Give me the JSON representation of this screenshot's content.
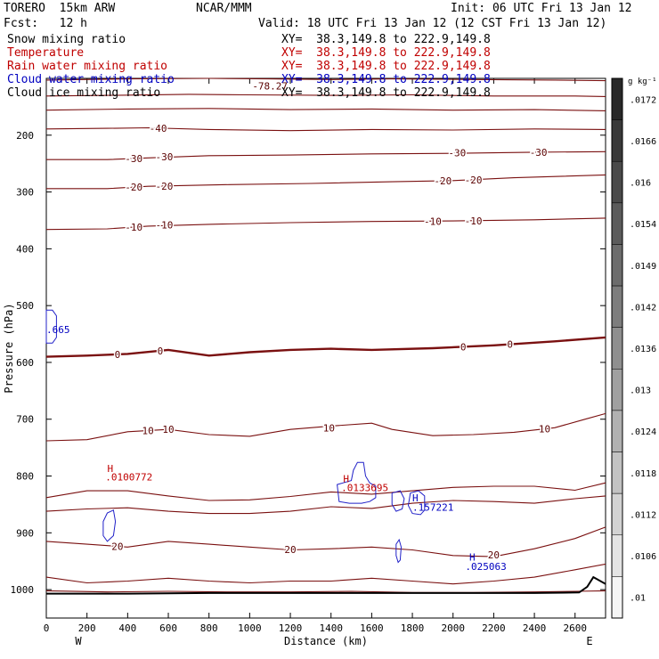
{
  "header": {
    "model": "TORERO  15km ARW",
    "org": "NCAR/MMM",
    "init": "Init: 06 UTC Fri 13 Jan 12",
    "fcst": "Fcst:   12 h",
    "valid": "Valid: 18 UTC Fri 13 Jan 12 (12 CST Fri 13 Jan 12)"
  },
  "fields": [
    {
      "name": "Snow mixing ratio",
      "xy": "XY=  38.3,149.8 to 222.9,149.8",
      "color": "#000000"
    },
    {
      "name": "Temperature",
      "xy": "XY=  38.3,149.8 to 222.9,149.8",
      "color": "#c00000"
    },
    {
      "name": "Rain water mixing ratio",
      "xy": "XY=  38.3,149.8 to 222.9,149.8",
      "color": "#c00000"
    },
    {
      "name": "Cloud water mixing ratio",
      "xy": "XY=  38.3,149.8 to 222.9,149.8",
      "color": "#0000c0"
    },
    {
      "name": "Cloud ice mixing ratio",
      "xy": "XY=  38.3,149.8 to 222.9,149.8",
      "color": "#000000"
    }
  ],
  "chart_data": {
    "type": "contour-cross-section",
    "xlabel": "Distance (km)",
    "ylabel": "Pressure (hPa)",
    "x_range": [
      0,
      2750
    ],
    "y_range": [
      100,
      1050
    ],
    "x_ticks": [
      0,
      200,
      400,
      600,
      800,
      1000,
      1200,
      1400,
      1600,
      1800,
      2000,
      2200,
      2400,
      2600
    ],
    "y_ticks": [
      200,
      300,
      400,
      500,
      600,
      700,
      800,
      900,
      1000
    ],
    "x_end_labels": [
      "W",
      "E"
    ],
    "colorbar": {
      "unit": "g kg⁻¹",
      "labels": [
        ".0172",
        ".0166",
        ".016",
        ".0154",
        ".0149",
        ".0142",
        ".0136",
        ".013",
        ".0124",
        ".0118",
        ".0112",
        ".0106",
        ".01"
      ]
    },
    "temperature_contours": [
      {
        "label": "-78.27",
        "points": [
          [
            0,
            103
          ],
          [
            400,
            101
          ],
          [
            800,
            100
          ],
          [
            1100,
            101
          ],
          [
            1400,
            102
          ],
          [
            1700,
            101
          ],
          [
            2100,
            102
          ],
          [
            2500,
            103
          ],
          [
            2750,
            104
          ]
        ]
      },
      {
        "label": "",
        "points": [
          [
            0,
            131
          ],
          [
            300,
            130
          ],
          [
            700,
            128
          ],
          [
            1000,
            129
          ],
          [
            1400,
            130
          ],
          [
            1800,
            129
          ],
          [
            2200,
            131
          ],
          [
            2600,
            131
          ],
          [
            2750,
            132
          ]
        ]
      },
      {
        "label": "",
        "points": [
          [
            0,
            156
          ],
          [
            400,
            154
          ],
          [
            800,
            153
          ],
          [
            1200,
            155
          ],
          [
            1600,
            154
          ],
          [
            2000,
            156
          ],
          [
            2400,
            155
          ],
          [
            2750,
            157
          ]
        ]
      },
      {
        "label": "-40",
        "points": [
          [
            0,
            189
          ],
          [
            300,
            188
          ],
          [
            500,
            187
          ],
          [
            800,
            190
          ],
          [
            1200,
            192
          ],
          [
            1600,
            190
          ],
          [
            2000,
            191
          ],
          [
            2400,
            189
          ],
          [
            2750,
            190
          ]
        ]
      },
      {
        "label": "-30",
        "points": [
          [
            0,
            243
          ],
          [
            300,
            243
          ],
          [
            500,
            240
          ],
          [
            800,
            236
          ],
          [
            1200,
            235
          ],
          [
            1600,
            233
          ],
          [
            2000,
            232
          ],
          [
            2400,
            230
          ],
          [
            2750,
            229
          ]
        ]
      },
      {
        "label": "-20",
        "points": [
          [
            0,
            294
          ],
          [
            300,
            294
          ],
          [
            500,
            290
          ],
          [
            900,
            287
          ],
          [
            1300,
            285
          ],
          [
            1700,
            282
          ],
          [
            2000,
            280
          ],
          [
            2300,
            275
          ],
          [
            2750,
            270
          ]
        ]
      },
      {
        "label": "-10",
        "points": [
          [
            0,
            366
          ],
          [
            300,
            365
          ],
          [
            500,
            360
          ],
          [
            800,
            357
          ],
          [
            1200,
            354
          ],
          [
            1600,
            352
          ],
          [
            2000,
            351
          ],
          [
            2400,
            349
          ],
          [
            2750,
            346
          ]
        ]
      },
      {
        "label": "0",
        "points": [
          [
            0,
            590
          ],
          [
            200,
            588
          ],
          [
            400,
            585
          ],
          [
            600,
            578
          ],
          [
            800,
            588
          ],
          [
            1000,
            582
          ],
          [
            1200,
            578
          ],
          [
            1400,
            576
          ],
          [
            1600,
            578
          ],
          [
            1900,
            575
          ],
          [
            2200,
            570
          ],
          [
            2500,
            563
          ],
          [
            2750,
            556
          ]
        ]
      },
      {
        "label": "10",
        "points": [
          [
            0,
            738
          ],
          [
            200,
            736
          ],
          [
            400,
            722
          ],
          [
            600,
            718
          ],
          [
            800,
            727
          ],
          [
            1000,
            730
          ],
          [
            1200,
            718
          ],
          [
            1400,
            712
          ],
          [
            1600,
            707
          ],
          [
            1700,
            718
          ],
          [
            1900,
            729
          ],
          [
            2100,
            727
          ],
          [
            2300,
            723
          ],
          [
            2500,
            715
          ],
          [
            2650,
            700
          ],
          [
            2750,
            690
          ]
        ]
      },
      {
        "label": "",
        "points": [
          [
            0,
            838
          ],
          [
            200,
            826
          ],
          [
            400,
            826
          ],
          [
            600,
            835
          ],
          [
            800,
            843
          ],
          [
            1000,
            842
          ],
          [
            1200,
            836
          ],
          [
            1400,
            828
          ],
          [
            1600,
            832
          ],
          [
            1800,
            826
          ],
          [
            2000,
            820
          ],
          [
            2200,
            818
          ],
          [
            2400,
            818
          ],
          [
            2600,
            825
          ],
          [
            2750,
            812
          ]
        ]
      },
      {
        "label": "",
        "points": [
          [
            0,
            862
          ],
          [
            200,
            858
          ],
          [
            400,
            856
          ],
          [
            600,
            862
          ],
          [
            800,
            866
          ],
          [
            1000,
            866
          ],
          [
            1200,
            862
          ],
          [
            1400,
            854
          ],
          [
            1600,
            857
          ],
          [
            1800,
            848
          ],
          [
            2000,
            843
          ],
          [
            2200,
            845
          ],
          [
            2400,
            848
          ],
          [
            2600,
            840
          ],
          [
            2750,
            835
          ]
        ]
      },
      {
        "label": "20",
        "points": [
          [
            0,
            915
          ],
          [
            200,
            920
          ],
          [
            400,
            925
          ],
          [
            600,
            915
          ],
          [
            800,
            920
          ],
          [
            1000,
            925
          ],
          [
            1200,
            930
          ],
          [
            1400,
            928
          ],
          [
            1600,
            925
          ],
          [
            1800,
            930
          ],
          [
            2000,
            940
          ],
          [
            2200,
            942
          ],
          [
            2400,
            928
          ],
          [
            2600,
            910
          ],
          [
            2750,
            890
          ]
        ]
      },
      {
        "label": "",
        "points": [
          [
            0,
            978
          ],
          [
            200,
            988
          ],
          [
            400,
            985
          ],
          [
            600,
            980
          ],
          [
            800,
            985
          ],
          [
            1000,
            988
          ],
          [
            1200,
            985
          ],
          [
            1400,
            985
          ],
          [
            1600,
            980
          ],
          [
            1800,
            985
          ],
          [
            2000,
            990
          ],
          [
            2200,
            985
          ],
          [
            2400,
            978
          ],
          [
            2600,
            965
          ],
          [
            2750,
            955
          ]
        ]
      },
      {
        "label": "",
        "points": [
          [
            0,
            1002
          ],
          [
            300,
            1004
          ],
          [
            600,
            1003
          ],
          [
            900,
            1004
          ],
          [
            1200,
            1004
          ],
          [
            1500,
            1003
          ],
          [
            1800,
            1005
          ],
          [
            2100,
            1005
          ],
          [
            2400,
            1004
          ],
          [
            2600,
            1003
          ],
          [
            2750,
            1002
          ]
        ]
      }
    ],
    "temperature_labels": [
      {
        "text": "-40",
        "x": 550,
        "y": 188
      },
      {
        "text": "-30",
        "x": 430,
        "y": 241
      },
      {
        "text": "-30",
        "x": 580,
        "y": 238
      },
      {
        "text": "-30",
        "x": 2020,
        "y": 231
      },
      {
        "text": "-30",
        "x": 2420,
        "y": 230
      },
      {
        "text": "-20",
        "x": 430,
        "y": 291
      },
      {
        "text": "-20",
        "x": 580,
        "y": 290
      },
      {
        "text": "-20",
        "x": 1950,
        "y": 280
      },
      {
        "text": "-20",
        "x": 2100,
        "y": 279
      },
      {
        "text": "-10",
        "x": 430,
        "y": 362
      },
      {
        "text": "-10",
        "x": 580,
        "y": 358
      },
      {
        "text": "-10",
        "x": 1900,
        "y": 352
      },
      {
        "text": "-10",
        "x": 2100,
        "y": 351
      },
      {
        "text": "0",
        "x": 350,
        "y": 586
      },
      {
        "text": "0",
        "x": 560,
        "y": 580
      },
      {
        "text": "0",
        "x": 2050,
        "y": 573
      },
      {
        "text": "0",
        "x": 2280,
        "y": 568
      },
      {
        "text": "10",
        "x": 500,
        "y": 720
      },
      {
        "text": "10",
        "x": 600,
        "y": 718
      },
      {
        "text": "10",
        "x": 1390,
        "y": 715
      },
      {
        "text": "10",
        "x": 2450,
        "y": 717
      },
      {
        "text": "20",
        "x": 350,
        "y": 924
      },
      {
        "text": "20",
        "x": 1200,
        "y": 929
      },
      {
        "text": "20",
        "x": 2200,
        "y": 939
      }
    ],
    "terrain_profile": [
      [
        0,
        1007
      ],
      [
        400,
        1007
      ],
      [
        800,
        1006
      ],
      [
        1200,
        1006
      ],
      [
        1600,
        1006
      ],
      [
        2000,
        1006
      ],
      [
        2400,
        1006
      ],
      [
        2620,
        1005
      ],
      [
        2660,
        995
      ],
      [
        2690,
        978
      ],
      [
        2710,
        982
      ],
      [
        2750,
        990
      ]
    ],
    "cloud_water_contours": [
      {
        "points": [
          [
            0,
            508
          ],
          [
            30,
            508
          ],
          [
            50,
            518
          ],
          [
            50,
            556
          ],
          [
            30,
            566
          ],
          [
            0,
            566
          ]
        ]
      },
      {
        "points": [
          [
            280,
            880
          ],
          [
            300,
            865
          ],
          [
            330,
            860
          ],
          [
            340,
            880
          ],
          [
            330,
            905
          ],
          [
            300,
            915
          ],
          [
            280,
            905
          ]
        ]
      },
      {
        "points": [
          [
            1430,
            815
          ],
          [
            1460,
            812
          ],
          [
            1500,
            808
          ],
          [
            1510,
            790
          ],
          [
            1530,
            776
          ],
          [
            1560,
            776
          ],
          [
            1570,
            800
          ],
          [
            1590,
            812
          ],
          [
            1620,
            818
          ],
          [
            1620,
            838
          ],
          [
            1590,
            845
          ],
          [
            1550,
            848
          ],
          [
            1490,
            848
          ],
          [
            1440,
            845
          ]
        ]
      },
      {
        "points": [
          [
            1700,
            830
          ],
          [
            1740,
            826
          ],
          [
            1760,
            840
          ],
          [
            1750,
            858
          ],
          [
            1720,
            862
          ],
          [
            1700,
            850
          ]
        ]
      },
      {
        "points": [
          [
            1790,
            830
          ],
          [
            1830,
            826
          ],
          [
            1860,
            835
          ],
          [
            1860,
            860
          ],
          [
            1840,
            868
          ],
          [
            1800,
            866
          ],
          [
            1780,
            852
          ]
        ]
      },
      {
        "points": [
          [
            1720,
            920
          ],
          [
            1735,
            912
          ],
          [
            1745,
            925
          ],
          [
            1740,
            948
          ],
          [
            1730,
            952
          ],
          [
            1720,
            940
          ]
        ]
      }
    ],
    "annotations": [
      {
        "text": "H",
        "x": 300,
        "y": 793,
        "color": "#c00000"
      },
      {
        "text": ".0100772",
        "x": 290,
        "y": 808,
        "color": "#c00000"
      },
      {
        "text": "H",
        "x": 1460,
        "y": 811,
        "color": "#c00000"
      },
      {
        "text": ".0133695",
        "x": 1450,
        "y": 827,
        "color": "#c00000"
      },
      {
        "text": "H",
        "x": 1800,
        "y": 845,
        "color": "#0000c0"
      },
      {
        "text": ".157221",
        "x": 1800,
        "y": 861,
        "color": "#0000c0"
      },
      {
        "text": "H",
        "x": 2080,
        "y": 949,
        "color": "#0000c0"
      },
      {
        "text": ".025063",
        "x": 2060,
        "y": 965,
        "color": "#0000c0"
      },
      {
        "text": ".665",
        "x": 0,
        "y": 548,
        "color": "#0000c0"
      }
    ]
  }
}
